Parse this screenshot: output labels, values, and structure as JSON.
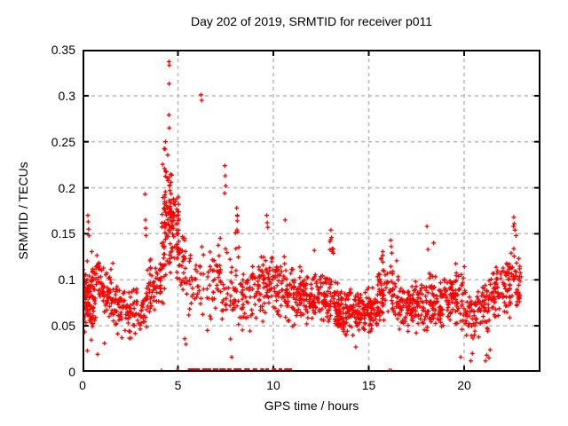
{
  "title": "Day 202 of 2019, SRMTID for receiver p011",
  "colors": {
    "marker": "#ff0000",
    "grid": "#b9b9b9",
    "axis": "#000000",
    "background": "#ffffff"
  },
  "chart_data": {
    "type": "scatter",
    "title": "Day 202 of 2019, SRMTID for receiver p011",
    "xlabel": "GPS time / hours",
    "ylabel": "SRMTID / TECUs",
    "xlim": [
      0,
      24
    ],
    "ylim": [
      0,
      0.35
    ],
    "xticks": [
      0,
      5,
      10,
      15,
      20
    ],
    "xtick_labels": [
      "0",
      "5",
      "10",
      "15",
      "20"
    ],
    "yticks": [
      0,
      0.05,
      0.1,
      0.15,
      0.2,
      0.25,
      0.3,
      0.35
    ],
    "ytick_labels": [
      "0",
      "0.05",
      "0.1",
      "0.15",
      "0.2",
      "0.25",
      "0.3",
      "0.35"
    ],
    "grid": "dashed, at every tick",
    "legend": "none",
    "marker": {
      "symbol": "plus",
      "color": "#ff0000",
      "size": 5
    },
    "seed": 42,
    "density_bands": [
      [
        0.0,
        0.35,
        0.045,
        0.125,
        45
      ],
      [
        0.05,
        0.6,
        0.03,
        0.105,
        30
      ],
      [
        0.35,
        1.0,
        0.05,
        0.135,
        55
      ],
      [
        1.0,
        1.6,
        0.045,
        0.12,
        50
      ],
      [
        1.6,
        2.2,
        0.035,
        0.105,
        46
      ],
      [
        2.2,
        2.8,
        0.03,
        0.095,
        40
      ],
      [
        2.8,
        3.4,
        0.035,
        0.1,
        38
      ],
      [
        3.4,
        4.0,
        0.05,
        0.125,
        42
      ],
      [
        4.0,
        4.3,
        0.06,
        0.15,
        30
      ],
      [
        4.15,
        4.45,
        0.13,
        0.255,
        18
      ],
      [
        4.3,
        4.7,
        0.1,
        0.245,
        48
      ],
      [
        4.55,
        5.05,
        0.11,
        0.215,
        58
      ],
      [
        4.9,
        5.35,
        0.075,
        0.175,
        30
      ],
      [
        5.3,
        5.8,
        0.05,
        0.155,
        20
      ],
      [
        5.75,
        6.25,
        0.05,
        0.145,
        17
      ],
      [
        6.25,
        6.75,
        0.045,
        0.15,
        16
      ],
      [
        6.75,
        7.25,
        0.06,
        0.155,
        20
      ],
      [
        7.0,
        7.25,
        0.08,
        0.135,
        14
      ],
      [
        7.25,
        7.75,
        0.04,
        0.135,
        18
      ],
      [
        7.75,
        8.3,
        0.03,
        0.125,
        26
      ],
      [
        8.0,
        8.2,
        0.115,
        0.175,
        8
      ],
      [
        8.3,
        8.85,
        0.04,
        0.115,
        36
      ],
      [
        8.85,
        9.45,
        0.05,
        0.13,
        40
      ],
      [
        9.45,
        10.05,
        0.06,
        0.14,
        44
      ],
      [
        10.05,
        10.65,
        0.05,
        0.13,
        46
      ],
      [
        10.65,
        11.25,
        0.045,
        0.12,
        48
      ],
      [
        11.25,
        11.85,
        0.05,
        0.115,
        50
      ],
      [
        11.85,
        12.45,
        0.045,
        0.11,
        52
      ],
      [
        12.45,
        13.05,
        0.05,
        0.115,
        52
      ],
      [
        12.95,
        13.15,
        0.115,
        0.155,
        7
      ],
      [
        13.05,
        13.65,
        0.04,
        0.1,
        56
      ],
      [
        13.65,
        14.25,
        0.035,
        0.095,
        58
      ],
      [
        14.25,
        14.85,
        0.035,
        0.09,
        58
      ],
      [
        14.85,
        15.45,
        0.04,
        0.095,
        55
      ],
      [
        15.45,
        15.95,
        0.045,
        0.115,
        46
      ],
      [
        15.55,
        15.75,
        0.105,
        0.135,
        6
      ],
      [
        15.95,
        16.55,
        0.05,
        0.125,
        40
      ],
      [
        16.55,
        17.15,
        0.04,
        0.1,
        46
      ],
      [
        17.15,
        17.75,
        0.04,
        0.1,
        50
      ],
      [
        17.75,
        18.35,
        0.04,
        0.11,
        52
      ],
      [
        18.35,
        18.95,
        0.045,
        0.105,
        52
      ],
      [
        18.95,
        19.55,
        0.05,
        0.105,
        48
      ],
      [
        19.55,
        20.05,
        0.04,
        0.12,
        38
      ],
      [
        20.05,
        20.65,
        0.03,
        0.09,
        42
      ],
      [
        20.65,
        21.25,
        0.035,
        0.1,
        46
      ],
      [
        21.25,
        21.85,
        0.05,
        0.125,
        50
      ],
      [
        21.85,
        22.45,
        0.055,
        0.13,
        48
      ],
      [
        22.45,
        23.0,
        0.065,
        0.148,
        40
      ]
    ],
    "outliers": [
      [
        0.28,
        0.17
      ],
      [
        0.3,
        0.163
      ],
      [
        0.32,
        0.155
      ],
      [
        0.34,
        0.148
      ],
      [
        0.25,
        0.023
      ],
      [
        0.79,
        0.019
      ],
      [
        1.15,
        0.031
      ],
      [
        3.28,
        0.193
      ],
      [
        3.3,
        0.165
      ],
      [
        3.31,
        0.156
      ],
      [
        3.33,
        0.148
      ],
      [
        4.53,
        0.337
      ],
      [
        4.55,
        0.333
      ],
      [
        4.54,
        0.313
      ],
      [
        4.53,
        0.279
      ],
      [
        4.55,
        0.265
      ],
      [
        4.35,
        0.25
      ],
      [
        4.33,
        0.242
      ],
      [
        6.21,
        0.301
      ],
      [
        6.24,
        0.295
      ],
      [
        7.46,
        0.224
      ],
      [
        7.48,
        0.213
      ],
      [
        7.5,
        0.202
      ],
      [
        7.45,
        0.194
      ],
      [
        8.08,
        0.178
      ],
      [
        8.11,
        0.17
      ],
      [
        9.65,
        0.17
      ],
      [
        9.68,
        0.162
      ],
      [
        9.71,
        0.157
      ],
      [
        10.62,
        0.165
      ],
      [
        12.15,
        0.132
      ],
      [
        13.02,
        0.154
      ],
      [
        13.05,
        0.146
      ],
      [
        16.15,
        0.143
      ],
      [
        16.18,
        0.136
      ],
      [
        16.21,
        0.129
      ],
      [
        18.05,
        0.158
      ],
      [
        18.1,
        0.133
      ],
      [
        18.4,
        0.14
      ],
      [
        19.82,
        0.016
      ],
      [
        20.35,
        0.012
      ],
      [
        20.43,
        0.02
      ],
      [
        21.12,
        0.012
      ],
      [
        21.18,
        0.018
      ],
      [
        21.3,
        0.015
      ],
      [
        21.36,
        0.024
      ],
      [
        5.36,
        0.036
      ],
      [
        5.42,
        0.03
      ],
      [
        6.55,
        0.045
      ],
      [
        7.82,
        0.016
      ],
      [
        14.32,
        0.027
      ],
      [
        22.58,
        0.158
      ],
      [
        22.6,
        0.168
      ],
      [
        22.63,
        0.161
      ],
      [
        22.66,
        0.154
      ],
      [
        22.72,
        0.148
      ]
    ],
    "zero_line_segments": [
      [
        4.14,
        4.17
      ],
      [
        4.95,
        5.05
      ],
      [
        5.55,
        5.8
      ],
      [
        5.85,
        6.15
      ],
      [
        6.3,
        6.55
      ],
      [
        6.6,
        6.72
      ],
      [
        6.85,
        7.1
      ],
      [
        7.2,
        7.5
      ],
      [
        7.6,
        7.8
      ],
      [
        7.95,
        8.3
      ],
      [
        8.5,
        8.75
      ],
      [
        8.95,
        9.15
      ],
      [
        9.35,
        9.5
      ],
      [
        9.6,
        9.75
      ],
      [
        9.95,
        10.15
      ],
      [
        10.3,
        10.45
      ],
      [
        10.6,
        10.95
      ],
      [
        16.07,
        16.09
      ],
      [
        16.17,
        16.19
      ]
    ],
    "zero_marker_step_hours": 0.035
  }
}
